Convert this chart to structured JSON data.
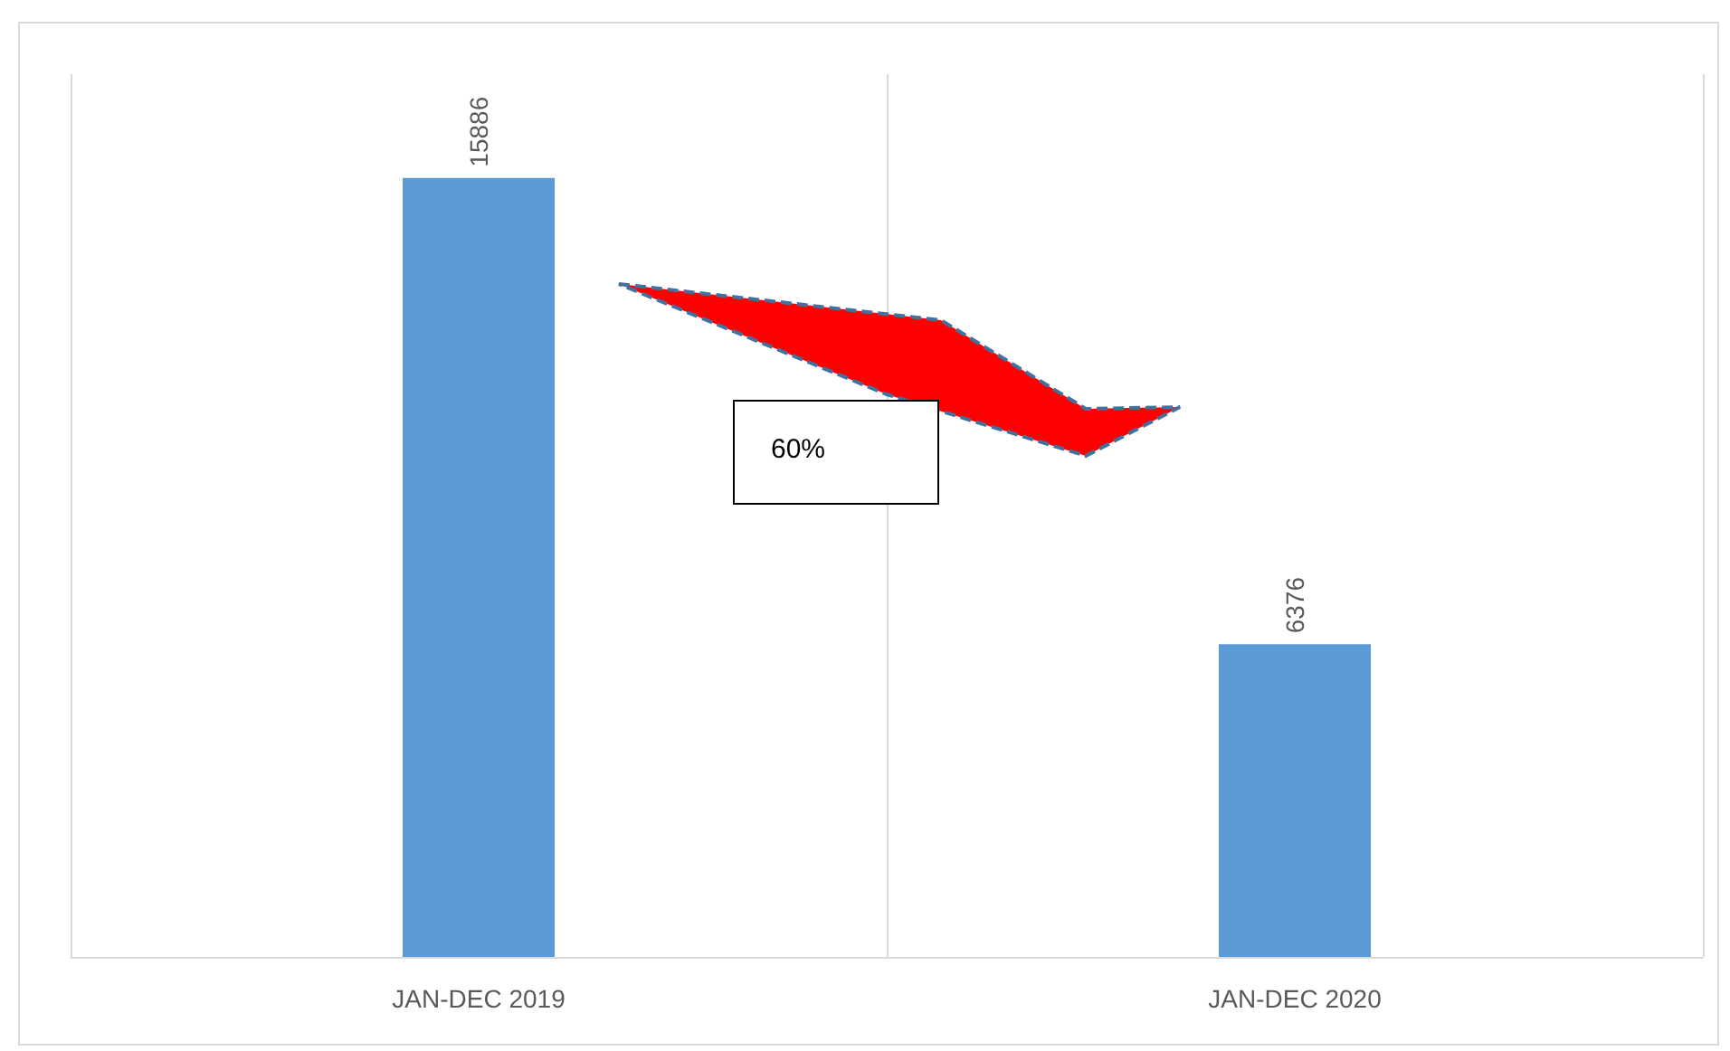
{
  "chart_data": {
    "type": "bar",
    "categories": [
      "JAN-DEC 2019",
      "JAN-DEC 2020"
    ],
    "values": [
      15886,
      6376
    ],
    "color": "#5b9bd5",
    "data_labels": true,
    "grid": "x",
    "tick_labels": "x",
    "annotations": [
      "60%"
    ]
  }
}
